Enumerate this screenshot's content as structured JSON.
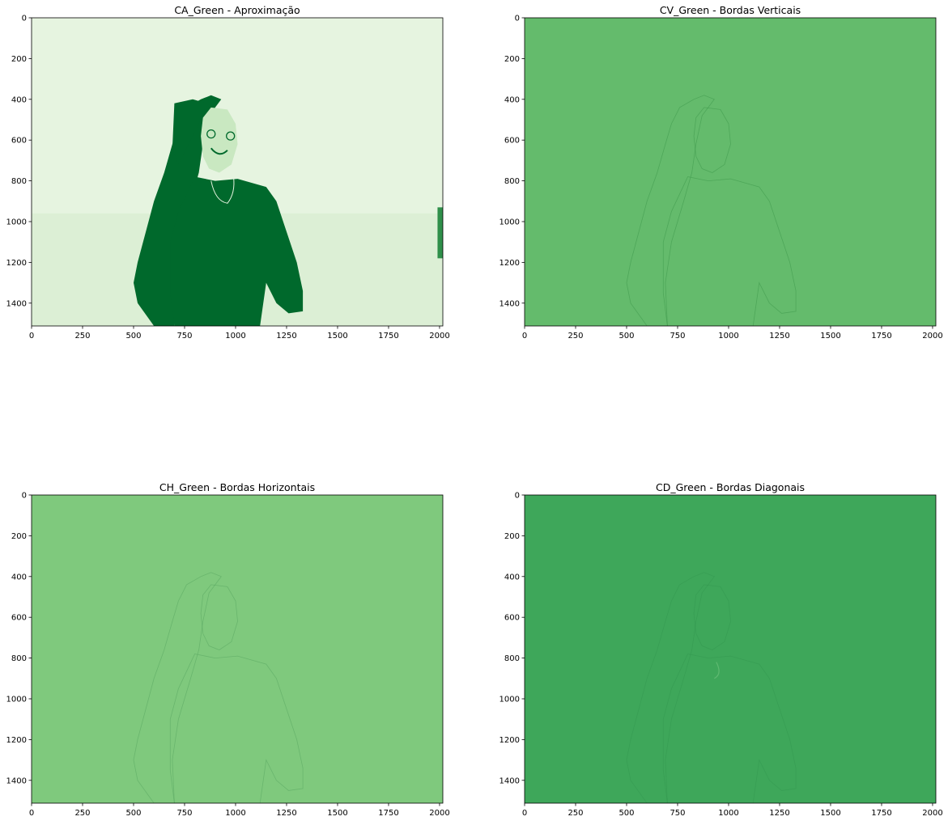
{
  "colors": {
    "ca_light": "#e6f4e0",
    "ca_dark": "#00692c",
    "ca_mid": "#c9e8c1",
    "cv_fill": "#64bb6c",
    "cv_line": "#3f9a4c",
    "ch_fill": "#7fc97d",
    "ch_line": "#5aa862",
    "cd_fill": "#3ea75a",
    "cd_line": "#2f8f4a",
    "axis": "#000000"
  },
  "chart_data": [
    {
      "type": "heatmap",
      "title": "CA_Green - Aproximação",
      "xlim": [
        0,
        2016
      ],
      "ylim": [
        1512,
        0
      ],
      "xticks": [
        0,
        250,
        500,
        750,
        1000,
        1250,
        1500,
        1750,
        2000
      ],
      "yticks": [
        0,
        200,
        400,
        600,
        800,
        1000,
        1200,
        1400
      ],
      "colormap": "Greens",
      "style": "approx"
    },
    {
      "type": "heatmap",
      "title": "CV_Green - Bordas Verticais",
      "xlim": [
        0,
        2016
      ],
      "ylim": [
        1512,
        0
      ],
      "xticks": [
        0,
        250,
        500,
        750,
        1000,
        1250,
        1500,
        1750,
        2000
      ],
      "yticks": [
        0,
        200,
        400,
        600,
        800,
        1000,
        1200,
        1400
      ],
      "colormap": "Greens",
      "style": "cv"
    },
    {
      "type": "heatmap",
      "title": "CH_Green - Bordas Horizontais",
      "xlim": [
        0,
        2016
      ],
      "ylim": [
        1512,
        0
      ],
      "xticks": [
        0,
        250,
        500,
        750,
        1000,
        1250,
        1500,
        1750,
        2000
      ],
      "yticks": [
        0,
        200,
        400,
        600,
        800,
        1000,
        1200,
        1400
      ],
      "colormap": "Greens",
      "style": "ch"
    },
    {
      "type": "heatmap",
      "title": "CD_Green - Bordas Diagonais",
      "xlim": [
        0,
        2016
      ],
      "ylim": [
        1512,
        0
      ],
      "xticks": [
        0,
        250,
        500,
        750,
        1000,
        1250,
        1500,
        1750,
        2000
      ],
      "yticks": [
        0,
        200,
        400,
        600,
        800,
        1000,
        1200,
        1400
      ],
      "colormap": "Greens",
      "style": "cd"
    }
  ]
}
